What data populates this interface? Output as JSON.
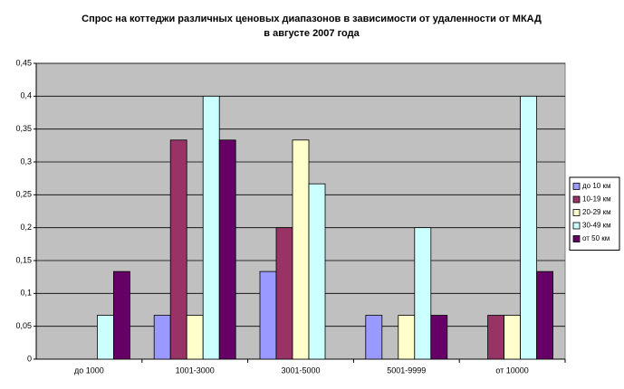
{
  "chart_data": {
    "type": "bar",
    "title": [
      "Спрос на коттеджи различных ценовых диапазонов в зависимости от удаленности от МКАД",
      "в августе 2007 года"
    ],
    "categories": [
      "до 1000",
      "1001-3000",
      "3001-5000",
      "5001-9999",
      "от 10000"
    ],
    "series": [
      {
        "name": "до 10 км",
        "color": "#9999ff",
        "values": [
          0,
          0.0667,
          0.1333,
          0.0667,
          0
        ]
      },
      {
        "name": "10-19 км",
        "color": "#993366",
        "values": [
          0,
          0.3333,
          0.2,
          0,
          0.0667
        ]
      },
      {
        "name": "20-29 км",
        "color": "#ffffcc",
        "values": [
          0,
          0.0667,
          0.3333,
          0.0667,
          0.0667
        ]
      },
      {
        "name": "30-49 км",
        "color": "#ccffff",
        "values": [
          0.0667,
          0.4,
          0.2667,
          0.2,
          0.4
        ]
      },
      {
        "name": "от 50 км",
        "color": "#660066",
        "values": [
          0.1333,
          0.3333,
          0,
          0.0667,
          0.1333
        ]
      }
    ],
    "ylim": [
      0,
      0.45
    ],
    "yticks": [
      0,
      {
        "value": 0.05,
        "label": "0,05"
      },
      {
        "value": 0.1,
        "label": "0,1"
      },
      {
        "value": 0.15,
        "label": "0,15"
      },
      {
        "value": 0.2,
        "label": "0,2"
      },
      {
        "value": 0.25,
        "label": "0,25"
      },
      {
        "value": 0.3,
        "label": "0,3"
      },
      {
        "value": 0.35,
        "label": "0,35"
      },
      {
        "value": 0.4,
        "label": "0,4"
      },
      {
        "value": 0.45,
        "label": "0,45"
      }
    ],
    "grid": true,
    "legend": "right"
  }
}
